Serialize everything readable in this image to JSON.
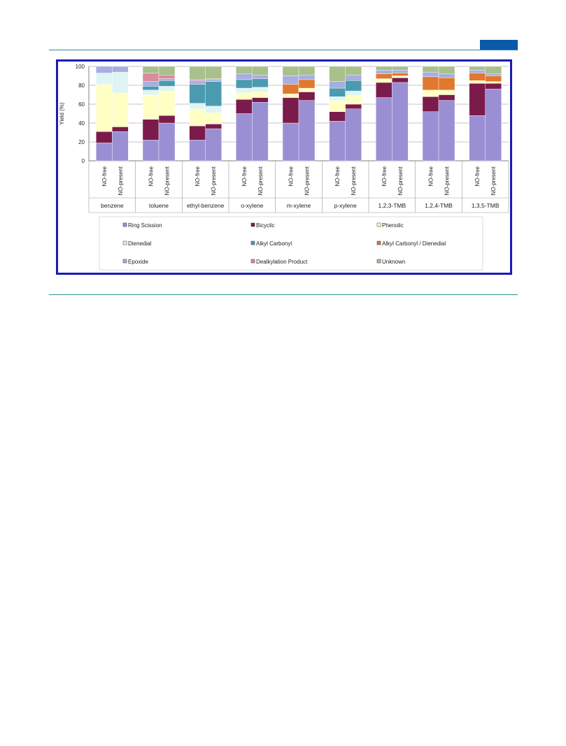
{
  "page": {
    "accent_color": "#0b5aa8",
    "rule_color": "#2e8b9a",
    "frame_color": "#1a1ab4"
  },
  "chart_data": {
    "type": "bar",
    "stacked": true,
    "ylabel": "Yield (%)",
    "ylim": [
      0,
      100
    ],
    "yticks": [
      0,
      20,
      40,
      60,
      80,
      100
    ],
    "grid": true,
    "legend_position": "bottom",
    "groups": [
      "benzene",
      "toluene",
      "ethyl-benzene",
      "o-xylene",
      "m-xylene",
      "p-xylene",
      "1,2,3-TMB",
      "1,2,4-TMB",
      "1,3,5-TMB"
    ],
    "conditions": [
      "NO-free",
      "NO-present"
    ],
    "categories": [
      "benzene NO-free",
      "benzene NO-present",
      "toluene NO-free",
      "toluene NO-present",
      "ethyl-benzene NO-free",
      "ethyl-benzene NO-present",
      "o-xylene NO-free",
      "o-xylene NO-present",
      "m-xylene NO-free",
      "m-xylene NO-present",
      "p-xylene NO-free",
      "p-xylene NO-present",
      "1,2,3-TMB NO-free",
      "1,2,3-TMB NO-present",
      "1,2,4-TMB NO-free",
      "1,2,4-TMB NO-present",
      "1,3,5-TMB NO-free",
      "1,3,5-TMB NO-present"
    ],
    "series": [
      {
        "name": "Ring Scission",
        "color": "#9b8fd4",
        "values": [
          19,
          31,
          22,
          40,
          22,
          34,
          50,
          62,
          40,
          64,
          42,
          55,
          67,
          83,
          52,
          64,
          48,
          76
        ]
      },
      {
        "name": "Bicyclic",
        "color": "#7b1b4b",
        "values": [
          12,
          5,
          22,
          8,
          15,
          5,
          15,
          5,
          27,
          9,
          10,
          5,
          16,
          5,
          16,
          6,
          34,
          6
        ]
      },
      {
        "name": "Phenolic",
        "color": "#ffffc4",
        "values": [
          50,
          36,
          26,
          26,
          18,
          12,
          7,
          6,
          4,
          4,
          12,
          9,
          4,
          2,
          7,
          5,
          3,
          2
        ]
      },
      {
        "name": "Dienedial",
        "color": "#dff4f4",
        "values": [
          12,
          22,
          5,
          5,
          6,
          7,
          5,
          5,
          0,
          0,
          4,
          5,
          0,
          0,
          0,
          0,
          0,
          0
        ]
      },
      {
        "name": "Alkyl Carbonyl",
        "color": "#4a9bb0",
        "values": [
          0,
          0,
          4,
          6,
          20,
          26,
          9,
          9,
          0,
          0,
          9,
          11,
          0,
          0,
          0,
          0,
          0,
          0
        ]
      },
      {
        "name": "Alkyl Carbonyl / Dienedial",
        "color": "#e0782e",
        "values": [
          0,
          0,
          0,
          0,
          0,
          0,
          0,
          0,
          10,
          9,
          0,
          0,
          5,
          3,
          14,
          13,
          8,
          6
        ]
      },
      {
        "name": "Epoxide",
        "color": "#a8aee0",
        "values": [
          7,
          6,
          5,
          2,
          4,
          2,
          6,
          4,
          9,
          5,
          7,
          6,
          4,
          3,
          5,
          4,
          3,
          2
        ]
      },
      {
        "name": "Dealkylation Product",
        "color": "#d98c9c",
        "values": [
          0,
          0,
          9,
          4,
          1,
          1,
          0,
          0,
          0,
          0,
          0,
          0,
          0,
          0,
          0,
          0,
          0,
          0
        ]
      },
      {
        "name": "Unknown",
        "color": "#a8c08a",
        "values": [
          0,
          0,
          7,
          9,
          14,
          13,
          8,
          9,
          10,
          9,
          16,
          9,
          4,
          4,
          6,
          8,
          4,
          8
        ]
      }
    ]
  }
}
